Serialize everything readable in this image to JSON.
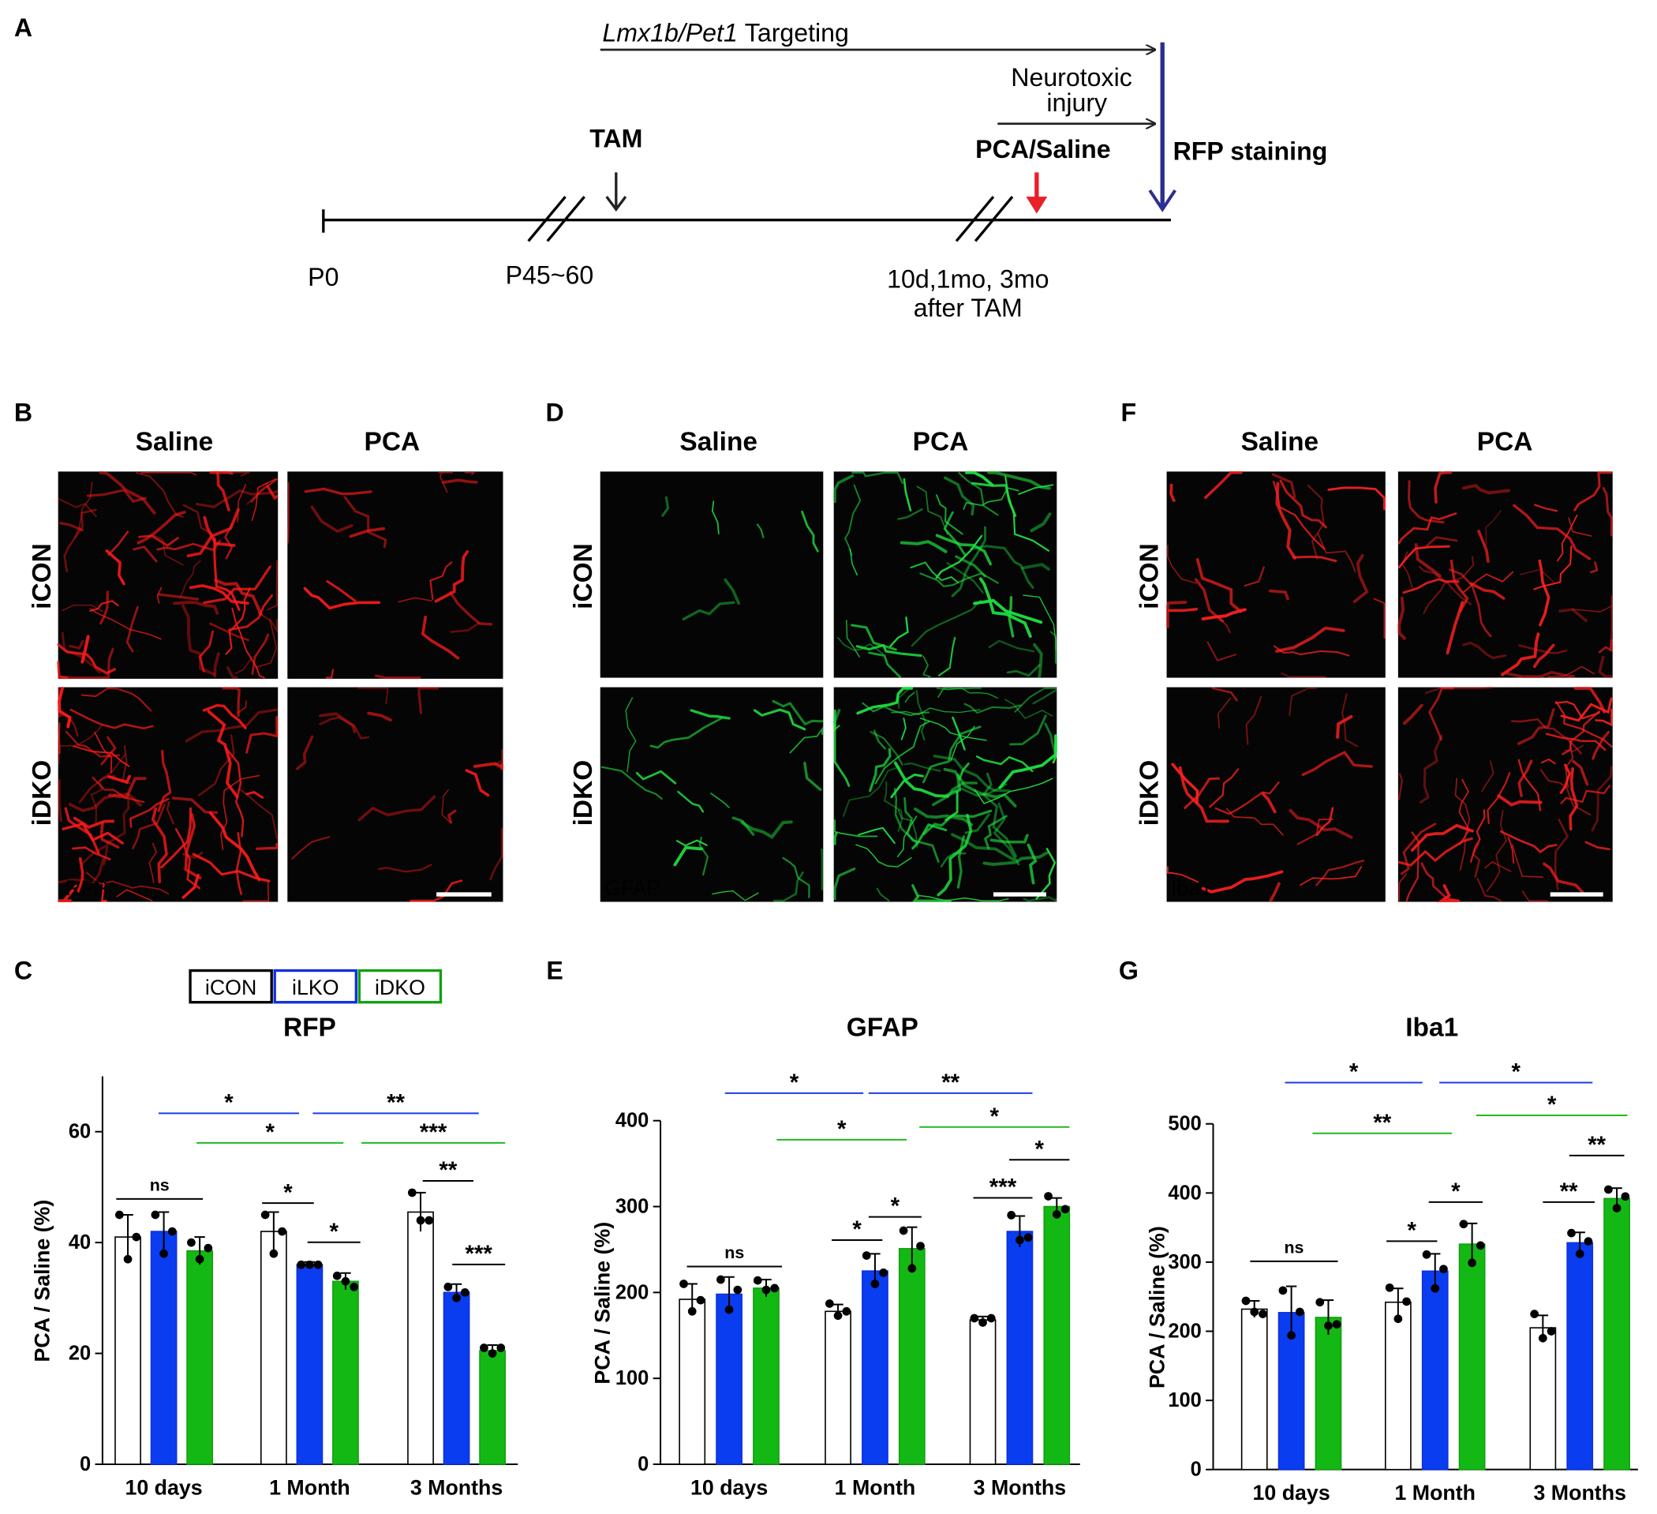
{
  "panel_labels": [
    "A",
    "B",
    "C",
    "D",
    "E",
    "F",
    "G"
  ],
  "timeline": {
    "targeting": {
      "gene": "Lmx1b/Pet1",
      "text": "Targeting"
    },
    "injury": [
      "Neurotoxic",
      "injury"
    ],
    "tam": "TAM",
    "treatment": "PCA/Saline",
    "staining": "RFP staining",
    "start": "P0",
    "adult": "P45~60",
    "timepoints": [
      "10d,1mo, 3mo",
      "after TAM"
    ]
  },
  "images": [
    {
      "columns": [
        "Saline",
        "PCA"
      ],
      "rows": [
        "iCON",
        "iDKO"
      ],
      "stain": "RFP"
    },
    {
      "columns": [
        "Saline",
        "PCA"
      ],
      "rows": [
        "iCON",
        "iDKO"
      ],
      "stain": "GFAP"
    },
    {
      "columns": [
        "Saline",
        "PCA"
      ],
      "rows": [
        "iCON",
        "iDKO"
      ],
      "stain": "Iba1"
    }
  ],
  "chart_data": [
    {
      "type": "bar",
      "title": "RFP",
      "y_label": "PCA / Saline (%)",
      "categories": [
        "10 days",
        "1 Month",
        "3 Months"
      ],
      "series": [
        {
          "name": "iCON",
          "color": "#ffffff",
          "edge_color": "#000000",
          "values": [
            41,
            42,
            45.5
          ],
          "errors": [
            4,
            3.5,
            3.5
          ],
          "points": [
            [
              45,
              37,
              41
            ],
            [
              45,
              38,
              42
            ],
            [
              49,
              44,
              44
            ]
          ]
        },
        {
          "name": "iLKO",
          "color": "#0a3cf0",
          "edge_color": "#1030e0",
          "values": [
            42,
            36,
            31
          ],
          "errors": [
            3.5,
            0.5,
            1.5
          ],
          "points": [
            [
              45,
              38,
              42
            ],
            [
              36,
              36,
              36
            ],
            [
              32,
              30,
              31
            ]
          ]
        },
        {
          "name": "iDKO",
          "color": "#14b814",
          "edge_color": "#10a010",
          "values": [
            38.5,
            33,
            20.5
          ],
          "errors": [
            2.5,
            1.5,
            1
          ],
          "points": [
            [
              40,
              37,
              39
            ],
            [
              34,
              33,
              32
            ],
            [
              21,
              20,
              21
            ]
          ]
        }
      ],
      "ylim": [
        0,
        70
      ],
      "yticks": [
        0,
        20,
        40,
        60
      ],
      "legend": true,
      "annotations": [
        {
          "text": "*",
          "color": "#1a3ee8"
        },
        {
          "text": "**",
          "color": "#1a3ee8"
        },
        {
          "text": "*",
          "color": "#22b822"
        },
        {
          "text": "***",
          "color": "#22b822"
        },
        {
          "text": "ns",
          "color": "#000000"
        },
        {
          "text": "*",
          "color": "#000000"
        },
        {
          "text": "*",
          "color": "#000000"
        },
        {
          "text": "**",
          "color": "#000000"
        },
        {
          "text": "***",
          "color": "#000000"
        }
      ]
    },
    {
      "type": "bar",
      "title": "GFAP",
      "y_label": "PCA / Saline (%)",
      "categories": [
        "10 days",
        "1 Month",
        "3 Months"
      ],
      "series": [
        {
          "name": "iCON",
          "color": "#ffffff",
          "edge_color": "#000000",
          "values": [
            192,
            178,
            168
          ],
          "errors": [
            18,
            8,
            4
          ],
          "points": [
            [
              210,
              178,
              191
            ],
            [
              187,
              173,
              178
            ],
            [
              170,
              165,
              170
            ]
          ]
        },
        {
          "name": "iLKO",
          "color": "#0a3cf0",
          "edge_color": "#1030e0",
          "values": [
            198,
            225,
            271
          ],
          "errors": [
            20,
            20,
            18
          ],
          "points": [
            [
              215,
              180,
              203
            ],
            [
              243,
              210,
              223
            ],
            [
              290,
              261,
              264
            ]
          ]
        },
        {
          "name": "iDKO",
          "color": "#14b814",
          "edge_color": "#10a010",
          "values": [
            205,
            251,
            300
          ],
          "errors": [
            10,
            25,
            10
          ],
          "points": [
            [
              214,
              203,
              205
            ],
            [
              272,
              228,
              254
            ],
            [
              312,
              291,
              297
            ]
          ]
        }
      ],
      "ylim": [
        0,
        400
      ],
      "yticks": [
        0,
        100,
        200,
        300,
        400
      ],
      "legend": false,
      "annotations": [
        {
          "text": "*",
          "color": "#1a3ee8"
        },
        {
          "text": "**",
          "color": "#1a3ee8"
        },
        {
          "text": "*",
          "color": "#22b822"
        },
        {
          "text": "*",
          "color": "#22b822"
        },
        {
          "text": "ns",
          "color": "#000000"
        },
        {
          "text": "*",
          "color": "#000000"
        },
        {
          "text": "*",
          "color": "#000000"
        },
        {
          "text": "***",
          "color": "#000000"
        },
        {
          "text": "*",
          "color": "#000000"
        }
      ]
    },
    {
      "type": "bar",
      "title": "Iba1",
      "y_label": "PCA / Saline (%)",
      "categories": [
        "10 days",
        "1 Month",
        "3 Months"
      ],
      "series": [
        {
          "name": "iCON",
          "color": "#ffffff",
          "edge_color": "#000000",
          "values": [
            232,
            242,
            205
          ],
          "errors": [
            12,
            20,
            18
          ],
          "points": [
            [
              244,
              228,
              225
            ],
            [
              263,
              218,
              243
            ],
            [
              225,
              190,
              200
            ]
          ]
        },
        {
          "name": "iLKO",
          "color": "#0a3cf0",
          "edge_color": "#1030e0",
          "values": [
            227,
            287,
            328
          ],
          "errors": [
            38,
            25,
            15
          ],
          "points": [
            [
              259,
              194,
              228
            ],
            [
              311,
              262,
              290
            ],
            [
              342,
              312,
              330
            ]
          ]
        },
        {
          "name": "iDKO",
          "color": "#14b814",
          "edge_color": "#10a010",
          "values": [
            220,
            326,
            392
          ],
          "errors": [
            25,
            30,
            15
          ],
          "points": [
            [
              242,
              208,
              210
            ],
            [
              355,
              299,
              324
            ],
            [
              405,
              378,
              395
            ]
          ]
        }
      ],
      "ylim": [
        0,
        500
      ],
      "yticks": [
        0,
        100,
        200,
        300,
        400,
        500
      ],
      "legend": false,
      "annotations": [
        {
          "text": "*",
          "color": "#1a3ee8"
        },
        {
          "text": "*",
          "color": "#1a3ee8"
        },
        {
          "text": "**",
          "color": "#22b822"
        },
        {
          "text": "*",
          "color": "#22b822"
        },
        {
          "text": "ns",
          "color": "#000000"
        },
        {
          "text": "*",
          "color": "#000000"
        },
        {
          "text": "*",
          "color": "#000000"
        },
        {
          "text": "**",
          "color": "#000000"
        },
        {
          "text": "**",
          "color": "#000000"
        }
      ]
    }
  ]
}
